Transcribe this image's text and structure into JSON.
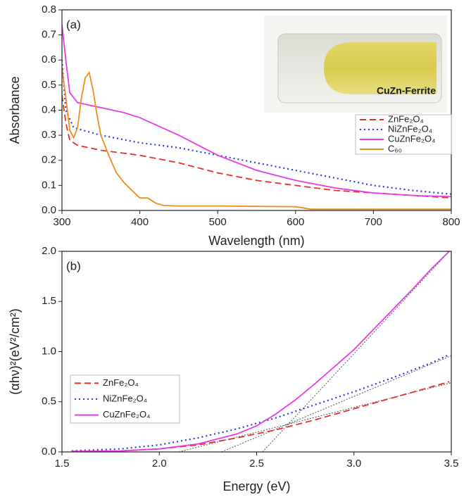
{
  "chart_data": [
    {
      "type": "line",
      "annotation": "(a)",
      "x_label": "Wavelength (nm)",
      "y_label": "Absorbance",
      "inset_label": "CuZn-Ferrite",
      "legend": "right",
      "xlim": [
        300,
        800
      ],
      "xticks": [
        300,
        400,
        500,
        600,
        700,
        800
      ],
      "ylim": [
        0,
        0.8
      ],
      "yticks": [
        {
          "value": 0,
          "label": "0.0"
        },
        0.1,
        0.2,
        0.3,
        0.4,
        0.5,
        0.6,
        0.7,
        0.8
      ],
      "series": [
        {
          "name": "ZnFe₂O₄",
          "color": "#e8302a",
          "style": "dashed",
          "x": [
            300,
            305,
            310,
            320,
            350,
            400,
            450,
            500,
            550,
            600,
            650,
            700,
            750,
            800
          ],
          "values": [
            0.46,
            0.35,
            0.28,
            0.26,
            0.24,
            0.22,
            0.19,
            0.15,
            0.12,
            0.1,
            0.08,
            0.07,
            0.06,
            0.05
          ]
        },
        {
          "name": "NiZnFe₂O₄",
          "color": "#2a3de8",
          "style": "dotted",
          "x": [
            300,
            305,
            315,
            350,
            400,
            450,
            500,
            550,
            600,
            650,
            700,
            750,
            800
          ],
          "values": [
            0.6,
            0.4,
            0.33,
            0.3,
            0.27,
            0.25,
            0.22,
            0.19,
            0.16,
            0.13,
            0.1,
            0.08,
            0.065
          ]
        },
        {
          "name": "CuZnFe₂O₄",
          "color": "#e83ae8",
          "style": "solid",
          "x": [
            300,
            305,
            310,
            320,
            350,
            380,
            400,
            450,
            500,
            550,
            600,
            650,
            700,
            750,
            800
          ],
          "values": [
            0.74,
            0.6,
            0.47,
            0.43,
            0.41,
            0.39,
            0.37,
            0.3,
            0.22,
            0.16,
            0.12,
            0.09,
            0.07,
            0.06,
            0.055
          ]
        },
        {
          "name": "C₆₀",
          "color": "#f08c1e",
          "style": "solid",
          "x": [
            300,
            305,
            310,
            315,
            320,
            325,
            330,
            335,
            340,
            345,
            350,
            360,
            370,
            380,
            390,
            400,
            405,
            410,
            420,
            430,
            450,
            500,
            600,
            620,
            700,
            800
          ],
          "values": [
            0.57,
            0.45,
            0.32,
            0.29,
            0.33,
            0.45,
            0.53,
            0.55,
            0.48,
            0.38,
            0.3,
            0.22,
            0.15,
            0.11,
            0.08,
            0.05,
            0.05,
            0.05,
            0.03,
            0.02,
            0.018,
            0.018,
            0.015,
            0.005,
            0.005,
            0.005
          ]
        }
      ]
    },
    {
      "type": "line",
      "annotation": "(b)",
      "x_label": "Energy (eV)",
      "y_label": "(αhν)²(eV²/cm²)",
      "legend": "lower left",
      "xlim": [
        1.5,
        3.5
      ],
      "xticks": [
        1.5,
        {
          "value": 2,
          "label": "2.0"
        },
        2.5,
        {
          "value": 3,
          "label": "3.0"
        },
        3.5
      ],
      "ylim": [
        0,
        2
      ],
      "yticks": [
        {
          "value": 0,
          "label": "0.0"
        },
        0.5,
        {
          "value": 1,
          "label": "1.0"
        },
        1.5,
        {
          "value": 2,
          "label": "2.0"
        }
      ],
      "series": [
        {
          "name": "ZnFe₂O₄",
          "color": "#e8302a",
          "style": "dashed",
          "x": [
            1.55,
            1.8,
            2.0,
            2.2,
            2.4,
            2.6,
            2.8,
            3.0,
            3.2,
            3.4,
            3.49
          ],
          "values": [
            0.005,
            0.01,
            0.03,
            0.07,
            0.14,
            0.22,
            0.32,
            0.43,
            0.54,
            0.65,
            0.7
          ]
        },
        {
          "name": "NiZnFe₂O₄",
          "color": "#2a3de8",
          "style": "dotted",
          "x": [
            1.55,
            1.8,
            2.0,
            2.2,
            2.4,
            2.6,
            2.8,
            3.0,
            3.2,
            3.4,
            3.49
          ],
          "values": [
            0.01,
            0.03,
            0.07,
            0.14,
            0.23,
            0.34,
            0.47,
            0.6,
            0.74,
            0.89,
            0.97
          ]
        },
        {
          "name": "CuZnFe₂O₄",
          "color": "#e83ae8",
          "style": "solid",
          "x": [
            1.55,
            1.8,
            2.0,
            2.2,
            2.4,
            2.5,
            2.6,
            2.7,
            2.8,
            2.9,
            3.0,
            3.1,
            3.2,
            3.3,
            3.4,
            3.49
          ],
          "values": [
            0.005,
            0.01,
            0.03,
            0.08,
            0.18,
            0.26,
            0.38,
            0.52,
            0.68,
            0.85,
            1.02,
            1.22,
            1.42,
            1.62,
            1.83,
            2.0
          ]
        }
      ],
      "tangents": [
        {
          "x": [
            2.1,
            3.5
          ],
          "values": [
            0,
            0.69
          ]
        },
        {
          "x": [
            2.32,
            3.5
          ],
          "values": [
            0,
            0.96
          ]
        },
        {
          "x": [
            2.53,
            3.49
          ],
          "values": [
            0,
            2.0
          ]
        }
      ]
    }
  ]
}
